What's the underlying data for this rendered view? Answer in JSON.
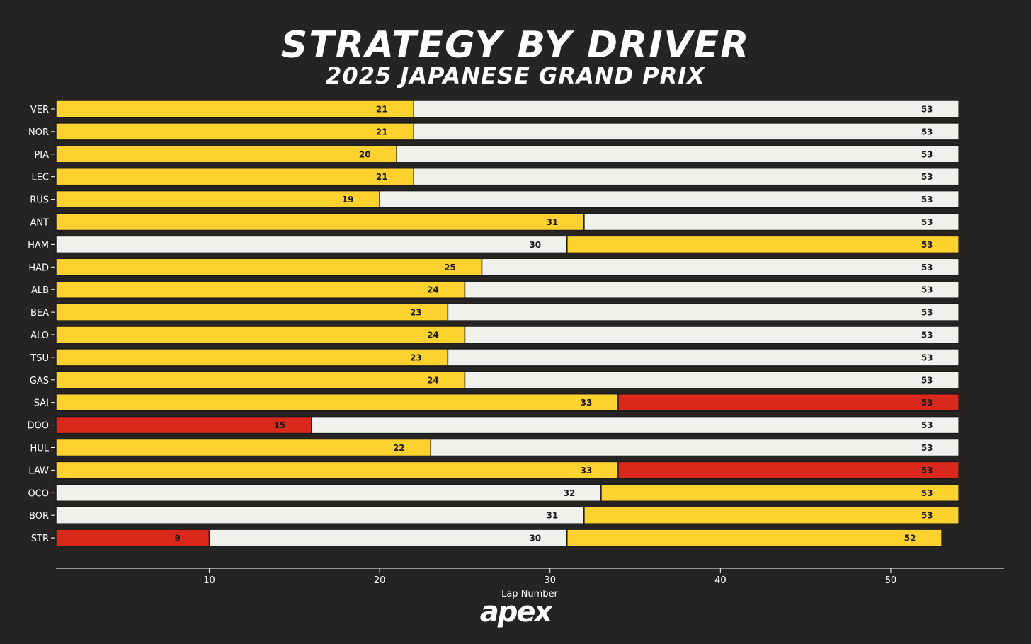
{
  "header": {
    "title": "STRATEGY BY DRIVER",
    "subtitle": "2025 JAPANESE GRAND PRIX"
  },
  "logo_text": "apex",
  "colors": {
    "background": "#262423",
    "MEDIUM": "#fdd12e",
    "HARD": "#f0f0ec",
    "SOFT": "#da291c",
    "axis": "#ffffff",
    "bar_border": "#1a1a1a",
    "label_text": "#1a1a1a"
  },
  "chart_data": {
    "type": "bar",
    "orientation": "horizontal-stacked",
    "xlabel": "Lap Number",
    "xlim": [
      1,
      56
    ],
    "xticks": [
      10,
      20,
      30,
      40,
      50
    ],
    "grid": false,
    "categories": [
      "VER",
      "NOR",
      "PIA",
      "LEC",
      "RUS",
      "ANT",
      "HAM",
      "HAD",
      "ALB",
      "BEA",
      "ALO",
      "TSU",
      "GAS",
      "SAI",
      "DOO",
      "HUL",
      "LAW",
      "OCO",
      "BOR",
      "STR"
    ],
    "drivers": [
      {
        "name": "VER",
        "stints": [
          {
            "compound": "MEDIUM",
            "end": 21
          },
          {
            "compound": "HARD",
            "end": 53
          }
        ]
      },
      {
        "name": "NOR",
        "stints": [
          {
            "compound": "MEDIUM",
            "end": 21
          },
          {
            "compound": "HARD",
            "end": 53
          }
        ]
      },
      {
        "name": "PIA",
        "stints": [
          {
            "compound": "MEDIUM",
            "end": 20
          },
          {
            "compound": "HARD",
            "end": 53
          }
        ]
      },
      {
        "name": "LEC",
        "stints": [
          {
            "compound": "MEDIUM",
            "end": 21
          },
          {
            "compound": "HARD",
            "end": 53
          }
        ]
      },
      {
        "name": "RUS",
        "stints": [
          {
            "compound": "MEDIUM",
            "end": 19
          },
          {
            "compound": "HARD",
            "end": 53
          }
        ]
      },
      {
        "name": "ANT",
        "stints": [
          {
            "compound": "MEDIUM",
            "end": 31
          },
          {
            "compound": "HARD",
            "end": 53
          }
        ]
      },
      {
        "name": "HAM",
        "stints": [
          {
            "compound": "HARD",
            "end": 30
          },
          {
            "compound": "MEDIUM",
            "end": 53
          }
        ]
      },
      {
        "name": "HAD",
        "stints": [
          {
            "compound": "MEDIUM",
            "end": 25
          },
          {
            "compound": "HARD",
            "end": 53
          }
        ]
      },
      {
        "name": "ALB",
        "stints": [
          {
            "compound": "MEDIUM",
            "end": 24
          },
          {
            "compound": "HARD",
            "end": 53
          }
        ]
      },
      {
        "name": "BEA",
        "stints": [
          {
            "compound": "MEDIUM",
            "end": 23
          },
          {
            "compound": "HARD",
            "end": 53
          }
        ]
      },
      {
        "name": "ALO",
        "stints": [
          {
            "compound": "MEDIUM",
            "end": 24
          },
          {
            "compound": "HARD",
            "end": 53
          }
        ]
      },
      {
        "name": "TSU",
        "stints": [
          {
            "compound": "MEDIUM",
            "end": 23
          },
          {
            "compound": "HARD",
            "end": 53
          }
        ]
      },
      {
        "name": "GAS",
        "stints": [
          {
            "compound": "MEDIUM",
            "end": 24
          },
          {
            "compound": "HARD",
            "end": 53
          }
        ]
      },
      {
        "name": "SAI",
        "stints": [
          {
            "compound": "MEDIUM",
            "end": 33
          },
          {
            "compound": "SOFT",
            "end": 53
          }
        ]
      },
      {
        "name": "DOO",
        "stints": [
          {
            "compound": "SOFT",
            "end": 15
          },
          {
            "compound": "HARD",
            "end": 53
          }
        ]
      },
      {
        "name": "HUL",
        "stints": [
          {
            "compound": "MEDIUM",
            "end": 22
          },
          {
            "compound": "HARD",
            "end": 53
          }
        ]
      },
      {
        "name": "LAW",
        "stints": [
          {
            "compound": "MEDIUM",
            "end": 33
          },
          {
            "compound": "SOFT",
            "end": 53
          }
        ]
      },
      {
        "name": "OCO",
        "stints": [
          {
            "compound": "HARD",
            "end": 32
          },
          {
            "compound": "MEDIUM",
            "end": 53
          }
        ]
      },
      {
        "name": "BOR",
        "stints": [
          {
            "compound": "HARD",
            "end": 31
          },
          {
            "compound": "MEDIUM",
            "end": 53
          }
        ]
      },
      {
        "name": "STR",
        "stints": [
          {
            "compound": "SOFT",
            "end": 9
          },
          {
            "compound": "HARD",
            "end": 30
          },
          {
            "compound": "MEDIUM",
            "end": 52
          }
        ]
      }
    ]
  }
}
